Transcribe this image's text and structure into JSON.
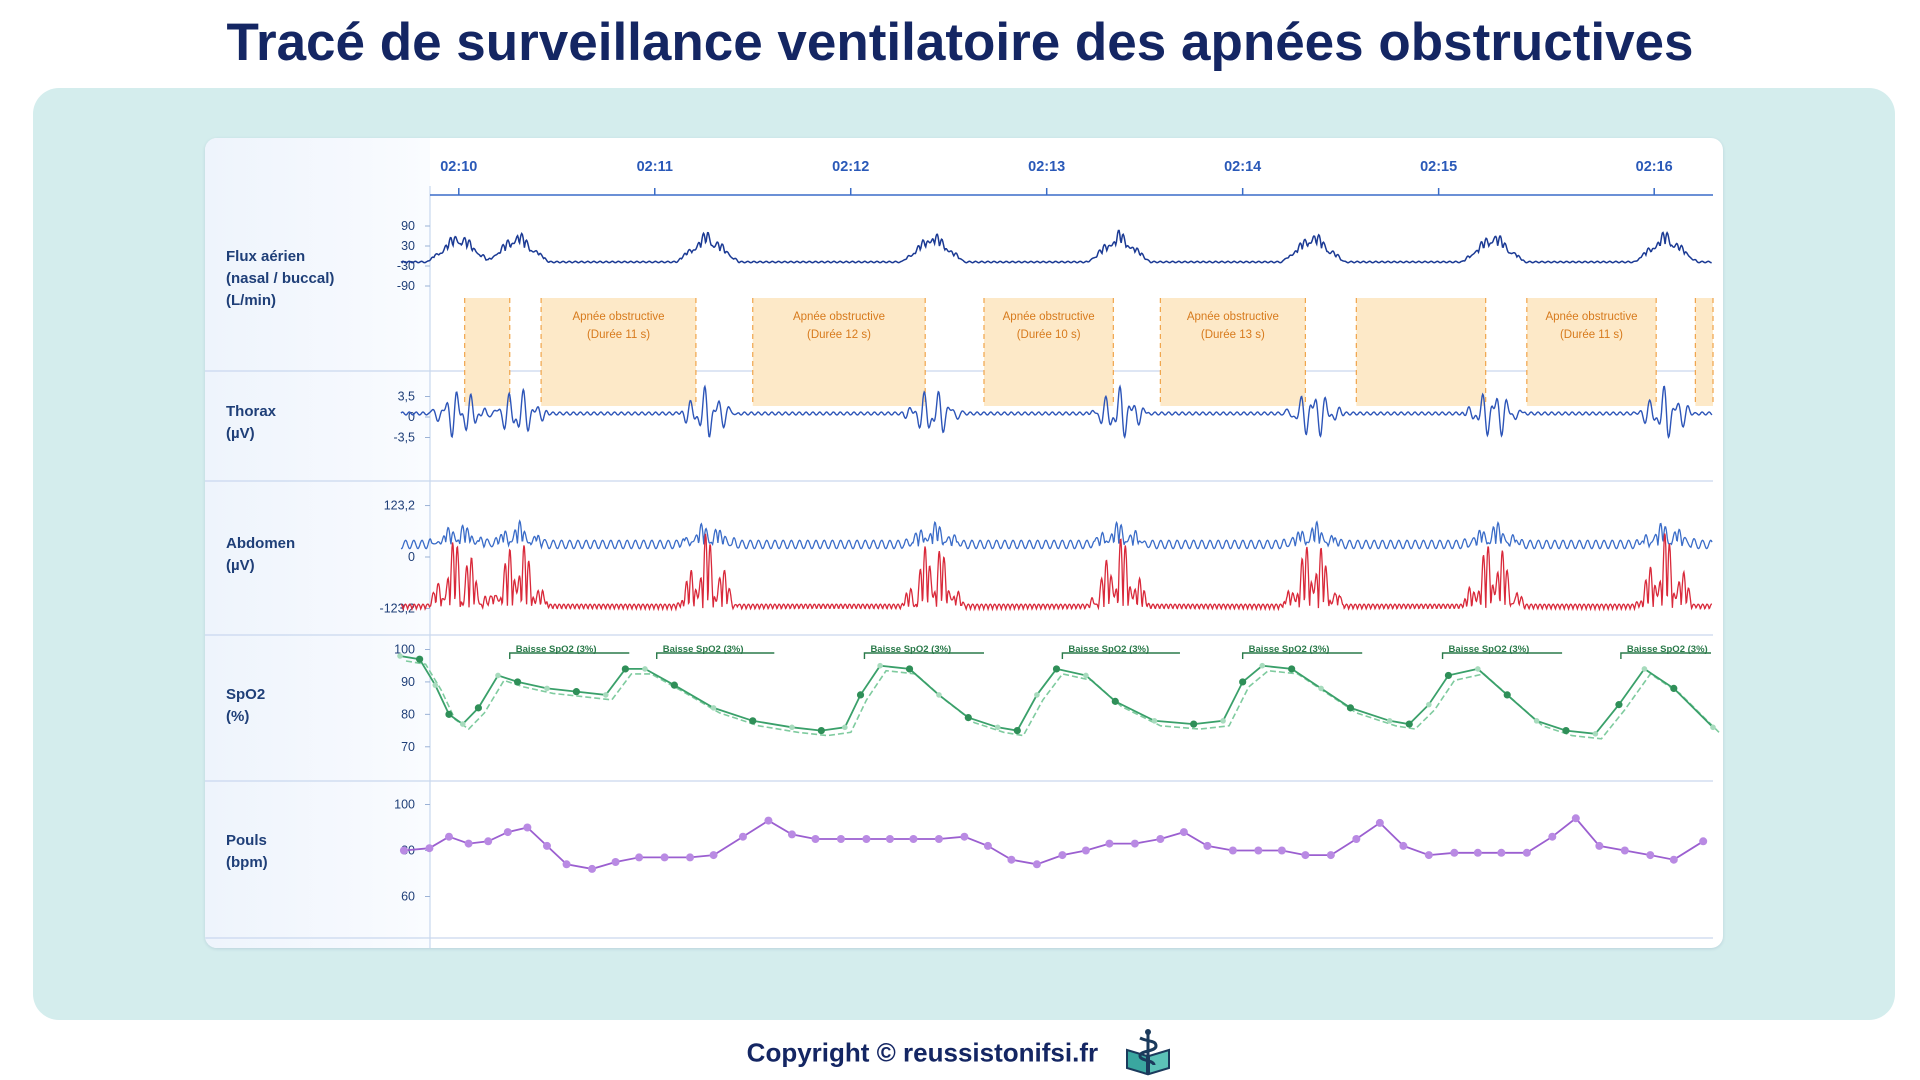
{
  "page": {
    "title": "Tracé de surveillance ventilatoire des apnées obstructives",
    "copyright": "Copyright © reussistonifsi.fr",
    "logo_icon": "caduceus-book-icon",
    "colors": {
      "title": "#142663",
      "panel": "#d4eded",
      "flow": "#1b3a94",
      "thorax": "#2d55b8",
      "abdomen_upper": "#3a6cc8",
      "abdomen_lower": "#d9293a",
      "spo2": "#3aa06a",
      "pulse": "#9b5fd0",
      "apnea_fill": "#fde9c8",
      "apnea_border": "#f0a44a"
    }
  },
  "chart_data": {
    "type": "line",
    "time_axis": {
      "labels": [
        "02:10",
        "02:11",
        "02:12",
        "02:13",
        "02:14",
        "02:15",
        "02:16"
      ],
      "values": [
        10,
        11,
        12,
        13,
        14,
        15,
        16.1
      ],
      "range": [
        9.7,
        16.4
      ]
    },
    "channels": [
      {
        "id": "flow",
        "label": "Flux aérien\n(nasal / buccal)\n(L/min)",
        "ticks": [
          "90",
          "30",
          "-30",
          "-90"
        ],
        "tick_values": [
          90,
          30,
          -30,
          -90
        ],
        "range": [
          -120,
          120
        ]
      },
      {
        "id": "thorax",
        "label": "Thorax\n(µV)",
        "ticks": [
          "3,5",
          "0",
          "-3,5"
        ],
        "tick_values": [
          3.5,
          0,
          -3.5
        ],
        "range": [
          -7,
          7
        ]
      },
      {
        "id": "abdomen",
        "label": "Abdomen\n(µV)",
        "ticks": [
          "123,2",
          "0",
          "-123,2"
        ],
        "tick_values": [
          123.2,
          0,
          -123.2
        ],
        "range": [
          -170,
          170
        ]
      },
      {
        "id": "spo2",
        "label": "SpO2\n(%)",
        "ticks": [
          "100",
          "90",
          "80",
          "70"
        ],
        "tick_values": [
          100,
          90,
          80,
          70
        ],
        "range": [
          65,
          102
        ]
      },
      {
        "id": "pulse",
        "label": "Pouls\n(bpm)",
        "ticks": [
          "100",
          "80",
          "60"
        ],
        "tick_values": [
          100,
          80,
          60
        ],
        "range": [
          55,
          105
        ]
      }
    ],
    "apnea_events": [
      {
        "start": 10.03,
        "end": 10.26,
        "label": "",
        "duration": ""
      },
      {
        "start": 10.42,
        "end": 11.21,
        "label": "Apnée obstructive",
        "duration": "(Durée 11 s)"
      },
      {
        "start": 11.5,
        "end": 12.38,
        "label": "Apnée obstructive",
        "duration": "(Durée 12 s)"
      },
      {
        "start": 12.68,
        "end": 13.34,
        "label": "Apnée obstructive",
        "duration": "(Durée 10 s)"
      },
      {
        "start": 13.58,
        "end": 14.32,
        "label": "Apnée obstructive",
        "duration": "(Durée 13 s)"
      },
      {
        "start": 14.58,
        "end": 15.24,
        "label": "",
        "duration": ""
      },
      {
        "start": 15.45,
        "end": 16.11,
        "label": "Apnée obstructive",
        "duration": "(Durée 11 s)"
      },
      {
        "start": 16.31,
        "end": 16.4,
        "label": "",
        "duration": ""
      }
    ],
    "burst_centers": [
      10.0,
      10.3,
      11.27,
      12.42,
      13.37,
      14.36,
      15.28,
      16.16
    ],
    "spo2_events": [
      {
        "start": 10.26,
        "end": 10.87,
        "label": "Baisse SpO2 (3%)"
      },
      {
        "start": 11.01,
        "end": 11.61,
        "label": "Baisse SpO2 (3%)"
      },
      {
        "start": 12.07,
        "end": 12.68,
        "label": "Baisse SpO2 (3%)"
      },
      {
        "start": 13.08,
        "end": 13.68,
        "label": "Baisse SpO2 (3%)"
      },
      {
        "start": 14.0,
        "end": 14.61,
        "label": "Baisse SpO2 (3%)"
      },
      {
        "start": 15.02,
        "end": 15.63,
        "label": "Baisse SpO2 (3%)"
      },
      {
        "start": 15.93,
        "end": 16.46,
        "label": "Baisse SpO2 (3%)"
      }
    ],
    "spo2_series": {
      "x": [
        9.7,
        9.8,
        9.88,
        9.95,
        10.02,
        10.1,
        10.2,
        10.3,
        10.45,
        10.6,
        10.75,
        10.85,
        10.95,
        11.1,
        11.3,
        11.5,
        11.7,
        11.85,
        11.97,
        12.05,
        12.15,
        12.3,
        12.45,
        12.6,
        12.75,
        12.85,
        12.95,
        13.05,
        13.2,
        13.35,
        13.55,
        13.75,
        13.9,
        14.0,
        14.1,
        14.25,
        14.4,
        14.55,
        14.75,
        14.85,
        14.95,
        15.05,
        15.2,
        15.35,
        15.5,
        15.65,
        15.8,
        15.92,
        16.05,
        16.2,
        16.4
      ],
      "values": [
        98,
        97,
        89,
        80,
        77,
        82,
        92,
        90,
        88,
        87,
        86,
        94,
        94,
        89,
        82,
        78,
        76,
        75,
        76,
        86,
        95,
        94,
        86,
        79,
        76,
        75,
        86,
        94,
        92,
        84,
        78,
        77,
        78,
        90,
        95,
        94,
        88,
        82,
        78,
        77,
        83,
        92,
        94,
        86,
        78,
        75,
        74,
        83,
        94,
        88,
        76
      ]
    },
    "pulse_series": {
      "x": [
        9.72,
        9.85,
        9.95,
        10.05,
        10.15,
        10.25,
        10.35,
        10.45,
        10.55,
        10.68,
        10.8,
        10.92,
        11.05,
        11.18,
        11.3,
        11.45,
        11.58,
        11.7,
        11.82,
        11.95,
        12.08,
        12.2,
        12.32,
        12.45,
        12.58,
        12.7,
        12.82,
        12.95,
        13.08,
        13.2,
        13.32,
        13.45,
        13.58,
        13.7,
        13.82,
        13.95,
        14.08,
        14.2,
        14.32,
        14.45,
        14.58,
        14.7,
        14.82,
        14.95,
        15.08,
        15.2,
        15.32,
        15.45,
        15.58,
        15.7,
        15.82,
        15.95,
        16.08,
        16.2,
        16.35
      ],
      "values": [
        80,
        81,
        86,
        83,
        84,
        88,
        90,
        82,
        74,
        72,
        75,
        77,
        77,
        77,
        78,
        86,
        93,
        87,
        85,
        85,
        85,
        85,
        85,
        85,
        86,
        82,
        76,
        74,
        78,
        80,
        83,
        83,
        85,
        88,
        82,
        80,
        80,
        80,
        78,
        78,
        85,
        92,
        82,
        78,
        79,
        79,
        79,
        79,
        86,
        94,
        82,
        80,
        78,
        76,
        84
      ]
    }
  }
}
